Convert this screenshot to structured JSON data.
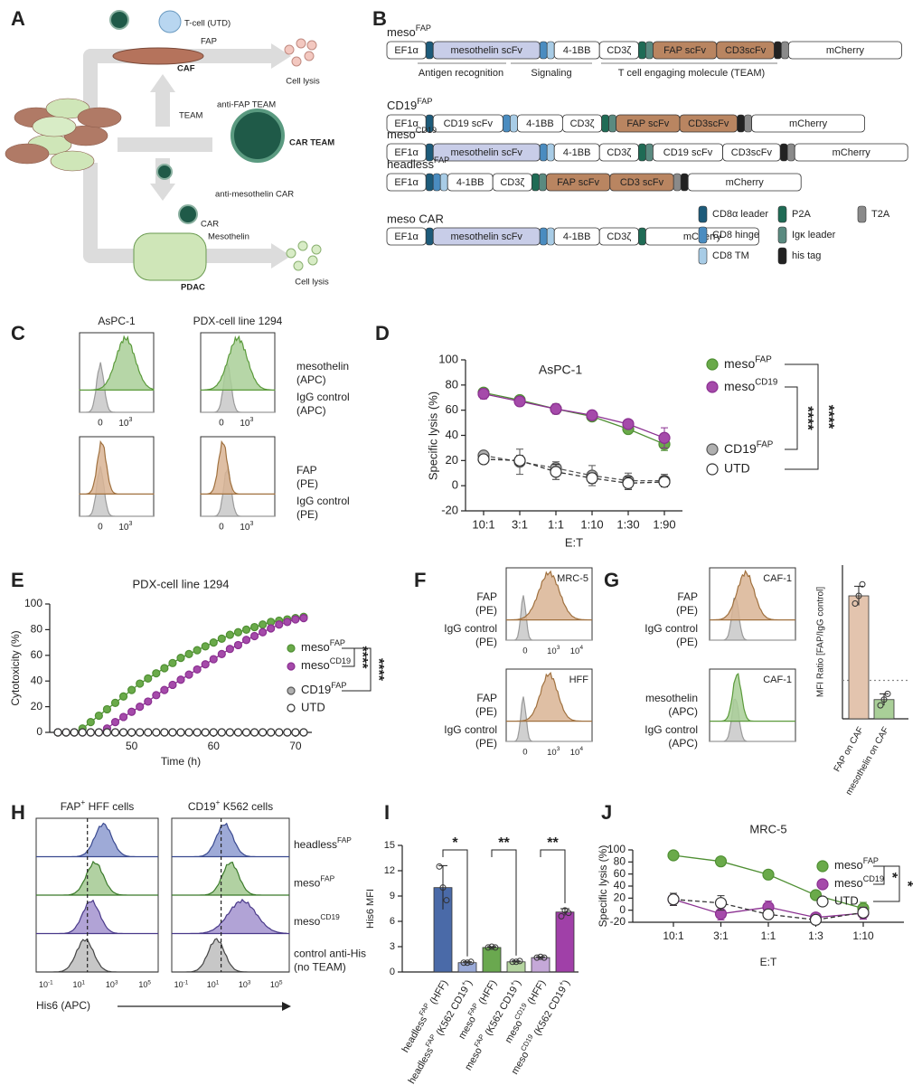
{
  "labels": [
    "A",
    "B",
    "C",
    "D",
    "E",
    "F",
    "G",
    "H",
    "I",
    "J"
  ],
  "schematic": {
    "t_cell": "T-cell (UTD)",
    "fap": "FAP",
    "caf": "CAF",
    "lysis_top": "Cell lysis",
    "team": "TEAM",
    "anti_fap": "anti-FAP TEAM",
    "car_team": "CAR TEAM",
    "anti_meso": "anti-mesothelin CAR",
    "car": "CAR",
    "mesothelin": "Mesothelin",
    "pdac": "PDAC",
    "lysis_bottom": "Cell lysis"
  },
  "constructs": {
    "rows": [
      {
        "name": [
          "meso",
          "FAP"
        ],
        "segments": [
          {
            "label": "EF1α"
          },
          {
            "color": "#1d5b7a"
          },
          {
            "label": "mesothelin scFv",
            "color": "#c8cde8"
          },
          {
            "color": "#4a8cc0"
          },
          {
            "color": "#a8cce6"
          },
          {
            "label": "4-1BB"
          },
          {
            "label": "CD3ζ"
          },
          {
            "color": "#1f6b55"
          },
          {
            "color": "#5a8a80"
          },
          {
            "label": "FAP scFv",
            "color": "#b98561"
          },
          {
            "label": "CD3scFv",
            "color": "#b98561"
          },
          {
            "color": "#222222"
          },
          {
            "color": "#8a8a8a"
          },
          {
            "label": "mCherry"
          }
        ]
      },
      {
        "name": [
          "CD19",
          "FAP"
        ],
        "segments": [
          {
            "label": "EF1α"
          },
          {
            "color": "#1d5b7a"
          },
          {
            "label": "CD19 scFv"
          },
          {
            "color": "#4a8cc0"
          },
          {
            "color": "#a8cce6"
          },
          {
            "label": "4-1BB"
          },
          {
            "label": "CD3ζ"
          },
          {
            "color": "#1f6b55"
          },
          {
            "color": "#5a8a80"
          },
          {
            "label": "FAP scFv",
            "color": "#b98561"
          },
          {
            "label": "CD3scFv",
            "color": "#b98561"
          },
          {
            "color": "#222222"
          },
          {
            "color": "#8a8a8a"
          },
          {
            "label": "mCherry"
          }
        ]
      },
      {
        "name": [
          "meso",
          "CD19"
        ],
        "segments": [
          {
            "label": "EF1α"
          },
          {
            "color": "#1d5b7a"
          },
          {
            "label": "mesothelin scFv",
            "color": "#c8cde8"
          },
          {
            "color": "#4a8cc0"
          },
          {
            "color": "#a8cce6"
          },
          {
            "label": "4-1BB"
          },
          {
            "label": "CD3ζ"
          },
          {
            "color": "#1f6b55"
          },
          {
            "color": "#5a8a80"
          },
          {
            "label": "CD19 scFv"
          },
          {
            "label": "CD3scFv"
          },
          {
            "color": "#222222"
          },
          {
            "color": "#8a8a8a"
          },
          {
            "label": "mCherry"
          }
        ]
      },
      {
        "name": [
          "headless",
          "FAP"
        ],
        "segments": [
          {
            "label": "EF1α"
          },
          {
            "color": "#1d5b7a"
          },
          {
            "color": "#4a8cc0"
          },
          {
            "color": "#a8cce6"
          },
          {
            "label": "4-1BB"
          },
          {
            "label": "CD3ζ"
          },
          {
            "color": "#1f6b55"
          },
          {
            "color": "#5a8a80"
          },
          {
            "label": "FAP scFv",
            "color": "#b98561"
          },
          {
            "label": "CD3 scFv",
            "color": "#b98561"
          },
          {
            "color": "#8a8a8a"
          },
          {
            "color": "#222222"
          },
          {
            "label": "mCherry"
          }
        ]
      },
      {
        "name": "meso CAR",
        "segments": [
          {
            "label": "EF1α"
          },
          {
            "color": "#1d5b7a"
          },
          {
            "label": "mesothelin scFv",
            "color": "#c8cde8"
          },
          {
            "color": "#4a8cc0"
          },
          {
            "color": "#a8cce6"
          },
          {
            "label": "4-1BB"
          },
          {
            "label": "CD3ζ"
          },
          {
            "color": "#1f6b55"
          },
          {
            "label": "mCherry"
          }
        ]
      }
    ],
    "annotations": [
      "Antigen recognition",
      "Signaling",
      "T cell engaging molecule (TEAM)"
    ],
    "legend": [
      {
        "label": "CD8α leader",
        "color": "#1d5b7a"
      },
      {
        "label": "CD8 hinge",
        "color": "#4a8cc0"
      },
      {
        "label": "CD8 TM",
        "color": "#a8cce6"
      },
      {
        "label": "P2A",
        "color": "#1f6b55"
      },
      {
        "label": "Igκ leader",
        "color": "#5a8a80"
      },
      {
        "label": "his tag",
        "color": "#222222"
      },
      {
        "label": "T2A",
        "color": "#8a8a8a"
      }
    ]
  },
  "flow_c": {
    "columns": [
      "AsPC-1",
      "PDX-cell line 1294"
    ],
    "rows": [
      {
        "stain": {
          "lines": [
            "mesothelin",
            "(APC)"
          ],
          "color": "#5a9a3a",
          "fill": "#a9cf98"
        },
        "control": {
          "lines": [
            "IgG control",
            "(APC)"
          ],
          "color": "#9a9a9a",
          "fill": "#c8c8c8"
        }
      },
      {
        "stain": {
          "lines": [
            "FAP",
            "(PE)"
          ],
          "color": "#a0713f",
          "fill": "#d9b494"
        },
        "control": {
          "lines": [
            "IgG control",
            "(PE)"
          ],
          "color": "#9a9a9a",
          "fill": "#c8c8c8"
        }
      }
    ],
    "ticks": [
      "0",
      [
        "10",
        "3"
      ]
    ]
  },
  "flow_f": {
    "boxes": [
      {
        "title": "MRC-5",
        "stain": {
          "lines": [
            "FAP",
            "(PE)"
          ],
          "color": "#a0713f",
          "fill": "#d9b494"
        },
        "control": {
          "lines": [
            "IgG control",
            "(PE)"
          ],
          "color": "#9a9a9a",
          "fill": "#c8c8c8"
        }
      },
      {
        "title": "HFF",
        "stain": {
          "lines": [
            "FAP",
            "(PE)"
          ],
          "color": "#a0713f",
          "fill": "#d9b494"
        },
        "control": {
          "lines": [
            "IgG control",
            "(PE)"
          ],
          "color": "#9a9a9a",
          "fill": "#c8c8c8"
        }
      }
    ],
    "ticks": [
      "0",
      [
        "10",
        "3"
      ],
      [
        "10",
        "4"
      ]
    ]
  },
  "flow_g": {
    "boxes": [
      {
        "title": "CAF-1",
        "stain": {
          "lines": [
            "FAP",
            "(PE)"
          ],
          "color": "#a0713f",
          "fill": "#d9b494"
        },
        "control": {
          "lines": [
            "IgG control",
            "(PE)"
          ],
          "color": "#9a9a9a",
          "fill": "#c8c8c8"
        }
      },
      {
        "title": "CAF-1",
        "stain": {
          "lines": [
            "mesothelin",
            "(APC)"
          ],
          "color": "#5a9a3a",
          "fill": "#a9cf98"
        },
        "control": {
          "lines": [
            "IgG control",
            "(APC)"
          ],
          "color": "#9a9a9a",
          "fill": "#c8c8c8"
        }
      }
    ]
  },
  "flow_h": {
    "columns": [
      [
        "FAP",
        "+",
        " HFF cells"
      ],
      [
        "CD19",
        "+",
        " K562 cells"
      ]
    ],
    "lanes": [
      {
        "lines": [
          [
            "headless",
            "FAP"
          ]
        ],
        "color": "#3a4a90",
        "fill": "#8d9bd0"
      },
      {
        "lines": [
          [
            "meso",
            "FAP"
          ]
        ],
        "color": "#3a7a2a",
        "fill": "#a3c992"
      },
      {
        "lines": [
          [
            "meso",
            "CD19"
          ]
        ],
        "color": "#4a3a8a",
        "fill": "#a393cf"
      },
      {
        "lines": [
          "control anti-His",
          "(no TEAM)"
        ],
        "color": "#444444",
        "fill": "#bdbdbd"
      }
    ],
    "ticks": [
      [
        "10",
        "-1"
      ],
      [
        "10",
        "1"
      ],
      [
        "10",
        "3"
      ],
      [
        "10",
        "5"
      ]
    ],
    "xlabel": "His6 (APC)"
  },
  "chart_data": [
    {
      "type": "line",
      "title": "AsPC-1",
      "xlabel": "E:T",
      "ylabel": "Specific lysis (%)",
      "categories": [
        "10:1",
        "3:1",
        "1:1",
        "1:10",
        "1:30",
        "1:90"
      ],
      "ylim": [
        -20,
        100
      ],
      "yticks": [
        -20,
        0,
        20,
        40,
        60,
        80,
        100
      ],
      "series": [
        {
          "name": [
            "meso",
            "FAP"
          ],
          "color": "#4f8f33",
          "fill": "#6aaa4a",
          "values": [
            74,
            68,
            61,
            55,
            45,
            33
          ],
          "errors": [
            3,
            2,
            2,
            3,
            3,
            5
          ]
        },
        {
          "name": [
            "meso",
            "CD19"
          ],
          "color": "#8a2f90",
          "fill": "#a54aaa",
          "values": [
            73,
            67,
            61,
            56,
            49,
            38
          ],
          "errors": [
            4,
            2,
            4,
            3,
            2,
            8
          ]
        },
        {
          "name": [
            "CD19",
            "FAP"
          ],
          "color": "#555555",
          "fill": "#b0b0b0",
          "dash": true,
          "values": [
            24,
            19,
            14,
            8,
            4,
            4
          ],
          "errors": [
            3,
            10,
            5,
            8,
            6,
            5
          ]
        },
        {
          "name": "UTD",
          "color": "#333333",
          "fill": "#ffffff",
          "dash": true,
          "values": [
            21,
            20,
            11,
            6,
            2,
            3
          ],
          "errors": [
            3,
            4,
            6,
            4,
            5,
            4
          ]
        }
      ],
      "annotations": [
        "****",
        "****"
      ]
    },
    {
      "type": "line",
      "title": "PDX-cell line 1294",
      "xlabel": "Time (h)",
      "ylabel": "Cytotoxicity (%)",
      "x": [
        41,
        42,
        43,
        44,
        45,
        46,
        47,
        48,
        49,
        50,
        51,
        52,
        53,
        54,
        55,
        56,
        57,
        58,
        59,
        60,
        61,
        62,
        63,
        64,
        65,
        66,
        67,
        68,
        69,
        70,
        71
      ],
      "xlim": [
        40,
        72
      ],
      "xticks": [
        50,
        60,
        70
      ],
      "ylim": [
        0,
        100
      ],
      "yticks": [
        0,
        20,
        40,
        60,
        80,
        100
      ],
      "series": [
        {
          "name": [
            "meso",
            "FAP"
          ],
          "color": "#4f8f33",
          "fill": "#6aaa4a",
          "values": [
            0,
            0,
            0,
            3,
            8,
            13,
            18,
            23,
            28,
            33,
            38,
            42,
            46,
            50,
            54,
            58,
            61,
            64,
            67,
            70,
            73,
            76,
            78,
            80,
            82,
            84,
            86,
            87,
            88,
            89,
            90
          ]
        },
        {
          "name": [
            "meso",
            "CD19"
          ],
          "color": "#8a2f90",
          "fill": "#a54aaa",
          "values": [
            0,
            0,
            0,
            0,
            0,
            0,
            3,
            8,
            12,
            16,
            20,
            24,
            29,
            33,
            37,
            41,
            45,
            49,
            53,
            57,
            61,
            65,
            68,
            72,
            75,
            78,
            81,
            84,
            86,
            88,
            89
          ]
        },
        {
          "name": [
            "CD19",
            "FAP"
          ],
          "color": "#555555",
          "fill": "#b0b0b0",
          "values": [
            0,
            0,
            0,
            0,
            0,
            0,
            0,
            0,
            0,
            0,
            0,
            0,
            0,
            0,
            0,
            0,
            0,
            0,
            0,
            0,
            0,
            0,
            0,
            0,
            0,
            0,
            0,
            0,
            0,
            0,
            0
          ]
        },
        {
          "name": "UTD",
          "color": "#333333",
          "fill": "#ffffff",
          "values": [
            0,
            0,
            0,
            0,
            0,
            0,
            0,
            0,
            0,
            0,
            0,
            0,
            0,
            0,
            0,
            0,
            0,
            0,
            0,
            0,
            0,
            0,
            0,
            0,
            0,
            0,
            0,
            0,
            0,
            0,
            0
          ]
        }
      ],
      "annotations": [
        "****",
        "****"
      ]
    },
    {
      "type": "bar",
      "ylabel": "MFI Ratio [FAP/IgG control]",
      "categories": [
        "FAP on CAF",
        "mesothelin on CAF"
      ],
      "values": [
        3.2,
        0.5
      ],
      "errors": [
        0.25,
        0.15
      ],
      "points": [
        [
          3.0,
          3.2,
          3.5
        ],
        [
          0.35,
          0.5,
          0.65
        ]
      ],
      "colors": [
        "#e3c4ae",
        "#a9cf98"
      ],
      "ylim": [
        0,
        4
      ],
      "refline": 1
    },
    {
      "type": "bar",
      "ylabel": "His6 MFI",
      "categories": [
        [
          "headless",
          "FAP",
          " (HFF)"
        ],
        [
          "headless",
          "FAP",
          " (K562 CD19",
          "+",
          ")"
        ],
        [
          "meso",
          "FAP",
          " (HFF)"
        ],
        [
          "meso",
          "FAP",
          " (K562 CD19",
          "+",
          ")"
        ],
        [
          "meso",
          "CD19",
          " (HFF)"
        ],
        [
          "meso",
          "CD19",
          " (K562 CD19",
          "+",
          ")"
        ]
      ],
      "values": [
        10,
        1.1,
        2.9,
        1.2,
        1.7,
        7.1
      ],
      "errors": [
        2.6,
        0.1,
        0.1,
        0.1,
        0.1,
        0.4
      ],
      "points": [
        [
          12.5,
          10,
          8.5
        ],
        [
          1.1,
          1.1,
          1.2
        ],
        [
          2.9,
          3.0,
          2.9
        ],
        [
          1.2,
          1.2,
          1.3
        ],
        [
          1.7,
          1.8,
          1.7
        ],
        [
          6.6,
          7.3,
          7.0
        ]
      ],
      "colors": [
        "#4a6aa8",
        "#9aaad8",
        "#6aa84f",
        "#b5d5a0",
        "#c5a8d8",
        "#a040a8"
      ],
      "ylim": [
        0,
        15
      ],
      "yticks": [
        0,
        3,
        6,
        9,
        12,
        15
      ],
      "annotations": [
        "*",
        "**",
        "**"
      ]
    },
    {
      "type": "line",
      "title": "MRC-5",
      "xlabel": "E:T",
      "ylabel": "Specific lysis (%)",
      "categories": [
        "10:1",
        "3:1",
        "1:1",
        "1:3",
        "1:10"
      ],
      "ylim": [
        -20,
        100
      ],
      "yticks": [
        -20,
        0,
        20,
        40,
        60,
        80,
        100
      ],
      "series": [
        {
          "name": [
            "meso",
            "FAP"
          ],
          "color": "#4f8f33",
          "fill": "#6aaa4a",
          "values": [
            91,
            81,
            59,
            25,
            3
          ],
          "errors": [
            2,
            3,
            5,
            6,
            10
          ]
        },
        {
          "name": [
            "meso",
            "CD19"
          ],
          "color": "#8a2f90",
          "fill": "#a54aaa",
          "values": [
            18,
            -6,
            5,
            -12,
            -5
          ],
          "errors": [
            10,
            10,
            10,
            5,
            10
          ]
        },
        {
          "name": "UTD",
          "color": "#333333",
          "fill": "#ffffff",
          "dash": true,
          "values": [
            18,
            12,
            -7,
            -16,
            -4
          ],
          "errors": [
            10,
            12,
            5,
            3,
            8
          ]
        }
      ],
      "annotations": [
        "*",
        "*"
      ]
    }
  ]
}
